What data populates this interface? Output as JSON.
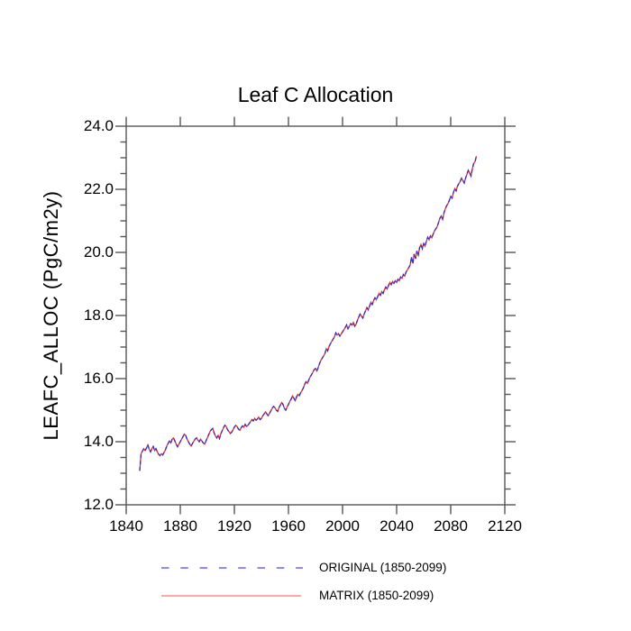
{
  "title": "Leaf C Allocation",
  "axes": {
    "y_label": "LEAFC_ALLOC  (PgC/m2y)",
    "x_tick_labels": [
      "1840",
      "1880",
      "1920",
      "1960",
      "2000",
      "2040",
      "2080",
      "2120"
    ],
    "y_tick_labels": [
      "24.0",
      "22.0",
      "20.0",
      "18.0",
      "16.0",
      "14.0",
      "12.0"
    ],
    "axis_color": "#565656"
  },
  "legend": {
    "items": [
      {
        "label": "ORIGINAL (1850-2099)",
        "swatch_color": "#8c8cf0",
        "line_style": "dashed"
      },
      {
        "label": "MATRIX (1850-2099)",
        "swatch_color": "#ff8c8c",
        "line_style": "solid"
      }
    ]
  },
  "chart_data": {
    "type": "line",
    "title": "Leaf C Allocation",
    "xlabel": "",
    "ylabel": "LEAFC_ALLOC (PgC/m2y)",
    "xlim": [
      1840,
      2120
    ],
    "ylim": [
      12.0,
      24.0
    ],
    "x_major_step": 40,
    "y_major_step": 2.0,
    "y_minor_step": 0.5,
    "grid": false,
    "legend_position": "bottom",
    "x_start_year": 1850,
    "x_end_year": 2099,
    "series": [
      {
        "name": "ORIGINAL (1850-2099)",
        "color": "#2e2ec8",
        "style": "dashed",
        "values": "shared"
      },
      {
        "name": "MATRIX (1850-2099)",
        "color": "#e03030",
        "style": "solid",
        "values": "shared"
      }
    ],
    "shared_values": [
      13.08,
      13.62,
      13.7,
      13.78,
      13.72,
      13.8,
      13.9,
      13.76,
      13.68,
      13.78,
      13.85,
      13.72,
      13.78,
      13.68,
      13.6,
      13.56,
      13.62,
      13.58,
      13.66,
      13.74,
      13.86,
      13.95,
      14.02,
      13.96,
      14.08,
      14.12,
      14.02,
      13.92,
      13.84,
      13.92,
      14.0,
      14.08,
      14.16,
      14.24,
      14.2,
      14.08,
      14.0,
      13.92,
      13.86,
      13.94,
      14.02,
      14.08,
      14.12,
      14.05,
      14.0,
      14.08,
      14.02,
      13.96,
      13.92,
      14.02,
      14.12,
      14.22,
      14.32,
      14.38,
      14.42,
      14.28,
      14.18,
      14.12,
      14.2,
      14.1,
      14.25,
      14.35,
      14.45,
      14.52,
      14.48,
      14.38,
      14.32,
      14.26,
      14.3,
      14.38,
      14.46,
      14.52,
      14.48,
      14.4,
      14.36,
      14.44,
      14.5,
      14.46,
      14.55,
      14.48,
      14.52,
      14.58,
      14.64,
      14.7,
      14.66,
      14.74,
      14.68,
      14.72,
      14.78,
      14.7,
      14.74,
      14.82,
      14.88,
      14.95,
      14.88,
      14.82,
      14.9,
      14.98,
      15.06,
      15.12,
      15.08,
      15.0,
      14.96,
      15.08,
      15.16,
      15.24,
      15.18,
      15.05,
      15.0,
      15.1,
      15.18,
      15.28,
      15.35,
      15.45,
      15.38,
      15.3,
      15.42,
      15.5,
      15.46,
      15.55,
      15.62,
      15.7,
      15.82,
      15.9,
      15.85,
      15.95,
      16.05,
      16.12,
      16.2,
      16.28,
      16.32,
      16.24,
      16.35,
      16.48,
      16.58,
      16.65,
      16.72,
      16.8,
      16.95,
      16.88,
      17.02,
      17.1,
      17.18,
      17.25,
      17.32,
      17.45,
      17.38,
      17.42,
      17.35,
      17.42,
      17.48,
      17.55,
      17.62,
      17.7,
      17.58,
      17.66,
      17.74,
      17.7,
      17.78,
      17.66,
      17.72,
      17.85,
      17.95,
      18.05,
      17.98,
      17.92,
      18.05,
      18.15,
      18.25,
      18.18,
      18.3,
      18.42,
      18.35,
      18.48,
      18.56,
      18.5,
      18.6,
      18.7,
      18.64,
      18.76,
      18.7,
      18.82,
      18.9,
      18.84,
      18.95,
      19.05,
      18.98,
      19.08,
      19.02,
      19.1,
      19.05,
      19.15,
      19.1,
      19.22,
      19.18,
      19.3,
      19.25,
      19.38,
      19.45,
      19.52,
      19.6,
      19.85,
      19.65,
      19.95,
      19.8,
      20.05,
      19.92,
      20.15,
      20.25,
      20.12,
      20.28,
      20.2,
      20.35,
      20.48,
      20.4,
      20.52,
      20.46,
      20.58,
      20.68,
      20.75,
      20.82,
      20.95,
      21.08,
      21.15,
      21.05,
      21.25,
      21.38,
      21.48,
      21.55,
      21.65,
      21.78,
      21.72,
      21.9,
      22.02,
      21.95,
      22.1,
      22.18,
      22.25,
      22.35,
      22.28,
      22.2,
      22.35,
      22.48,
      22.6,
      22.52,
      22.42,
      22.65,
      22.82,
      22.88,
      23.05
    ]
  }
}
